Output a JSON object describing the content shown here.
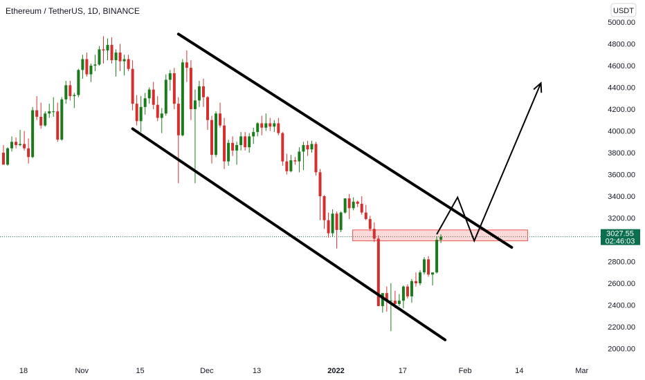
{
  "chart_data": {
    "type": "candlestick",
    "title": "Ethereum / TetherUS, 1D, BINANCE",
    "currency": "USDT",
    "colors": {
      "up": "#26a69a",
      "upFill": "#1b7a1b",
      "down": "#ef5350",
      "downFill": "#d32f2f",
      "current": "#0b6e4f",
      "zone": "#ef5350",
      "annotation": "#000000"
    },
    "y_axis": {
      "min": 2000,
      "max": 5000,
      "ticks": [
        "5000.00",
        "4800.00",
        "4600.00",
        "4400.00",
        "4200.00",
        "4000.00",
        "3800.00",
        "3600.00",
        "3400.00",
        "3200.00",
        "3000.00",
        "2800.00",
        "2600.00",
        "2400.00",
        "2200.00",
        "2000.00"
      ]
    },
    "x_axis": {
      "ticks": [
        {
          "label": "18",
          "day": 0
        },
        {
          "label": "Nov",
          "day": 14
        },
        {
          "label": "15",
          "day": 28
        },
        {
          "label": "Dec",
          "day": 44
        },
        {
          "label": "13",
          "day": 56
        },
        {
          "label": "2022",
          "day": 75,
          "bold": true
        },
        {
          "label": "17",
          "day": 91
        },
        {
          "label": "Feb",
          "day": 106
        },
        {
          "label": "14",
          "day": 119
        },
        {
          "label": "Mar",
          "day": 134
        }
      ]
    },
    "current_price": {
      "value": "3027.55",
      "countdown": "02:46:03"
    },
    "candles": [
      [
        3800,
        3870,
        3700,
        3690
      ],
      [
        3690,
        3850,
        3680,
        3840
      ],
      [
        3840,
        3950,
        3810,
        3900
      ],
      [
        3900,
        3940,
        3840,
        3870
      ],
      [
        3870,
        4010,
        3860,
        3880
      ],
      [
        3880,
        4000,
        3820,
        3840
      ],
      [
        3840,
        3930,
        3700,
        3760
      ],
      [
        3760,
        4220,
        3750,
        4190
      ],
      [
        4190,
        4320,
        4100,
        4130
      ],
      [
        4130,
        4260,
        4020,
        4050
      ],
      [
        4050,
        4180,
        4040,
        4160
      ],
      [
        4160,
        4250,
        4120,
        4180
      ],
      [
        4180,
        4310,
        4130,
        4180
      ],
      [
        4180,
        4260,
        3900,
        3920
      ],
      [
        3920,
        4310,
        3910,
        4290
      ],
      [
        4290,
        4460,
        4250,
        4420
      ],
      [
        4420,
        4460,
        4280,
        4320
      ],
      [
        4320,
        4350,
        4210,
        4330
      ],
      [
        4330,
        4570,
        4310,
        4560
      ],
      [
        4560,
        4700,
        4480,
        4660
      ],
      [
        4660,
        4720,
        4500,
        4520
      ],
      [
        4520,
        4620,
        4450,
        4600
      ],
      [
        4600,
        4700,
        4550,
        4610
      ],
      [
        4610,
        4780,
        4600,
        4750
      ],
      [
        4750,
        4870,
        4620,
        4740
      ],
      [
        4740,
        4850,
        4650,
        4790
      ],
      [
        4790,
        4860,
        4620,
        4650
      ],
      [
        4650,
        4750,
        4500,
        4720
      ],
      [
        4720,
        4800,
        4550,
        4640
      ],
      [
        4640,
        4700,
        4510,
        4660
      ],
      [
        4660,
        4700,
        4550,
        4570
      ],
      [
        4570,
        4650,
        4190,
        4250
      ],
      [
        4250,
        4330,
        4050,
        4090
      ],
      [
        4090,
        4320,
        3990,
        4220
      ],
      [
        4220,
        4350,
        4150,
        4300
      ],
      [
        4300,
        4400,
        4250,
        4380
      ],
      [
        4380,
        4450,
        4200,
        4240
      ],
      [
        4240,
        4320,
        4090,
        4120
      ],
      [
        4120,
        4210,
        3980,
        4160
      ],
      [
        4160,
        4520,
        4140,
        4470
      ],
      [
        4470,
        4560,
        4370,
        4530
      ],
      [
        4530,
        4580,
        4200,
        4250
      ],
      [
        4250,
        4310,
        3520,
        3960
      ],
      [
        3960,
        4660,
        3950,
        4630
      ],
      [
        4630,
        4740,
        4450,
        4580
      ],
      [
        4580,
        4650,
        4100,
        4200
      ],
      [
        4200,
        4380,
        3520,
        4280
      ],
      [
        4280,
        4460,
        4220,
        4410
      ],
      [
        4410,
        4480,
        4220,
        4310
      ],
      [
        4310,
        4320,
        4010,
        4100
      ],
      [
        4100,
        4140,
        3700,
        3780
      ],
      [
        3780,
        4180,
        3760,
        4160
      ],
      [
        4160,
        4260,
        4030,
        4050
      ],
      [
        4050,
        4120,
        3650,
        3720
      ],
      [
        3720,
        3920,
        3680,
        3890
      ],
      [
        3890,
        3950,
        3770,
        3820
      ],
      [
        3820,
        3900,
        3690,
        3870
      ],
      [
        3870,
        3990,
        3820,
        3950
      ],
      [
        3950,
        3990,
        3820,
        3850
      ],
      [
        3850,
        3980,
        3800,
        3950
      ],
      [
        3950,
        4030,
        3880,
        3990
      ],
      [
        3990,
        4080,
        3950,
        4070
      ],
      [
        4070,
        4140,
        3960,
        4030
      ],
      [
        4030,
        4160,
        4000,
        4070
      ],
      [
        4070,
        4120,
        4000,
        4040
      ],
      [
        4040,
        4100,
        3990,
        4070
      ],
      [
        4070,
        4120,
        3960,
        3980
      ],
      [
        3980,
        3990,
        3680,
        3720
      ],
      [
        3720,
        3790,
        3600,
        3630
      ],
      [
        3630,
        3780,
        3620,
        3730
      ],
      [
        3730,
        3760,
        3690,
        3720
      ],
      [
        3720,
        3850,
        3620,
        3810
      ],
      [
        3810,
        3900,
        3640,
        3870
      ],
      [
        3870,
        3910,
        3770,
        3830
      ],
      [
        3830,
        3910,
        3800,
        3880
      ],
      [
        3880,
        3900,
        3590,
        3620
      ],
      [
        3620,
        3650,
        3180,
        3400
      ],
      [
        3400,
        3410,
        3100,
        3180
      ],
      [
        3180,
        3250,
        3020,
        3060
      ],
      [
        3060,
        3280,
        3030,
        3240
      ],
      [
        3240,
        3260,
        2920,
        3090
      ],
      [
        3090,
        3260,
        3070,
        3250
      ],
      [
        3250,
        3380,
        3240,
        3380
      ],
      [
        3380,
        3420,
        3190,
        3290
      ],
      [
        3290,
        3390,
        3270,
        3350
      ],
      [
        3350,
        3360,
        3300,
        3330
      ],
      [
        3330,
        3400,
        3230,
        3250
      ],
      [
        3250,
        3320,
        3180,
        3190
      ],
      [
        3190,
        3220,
        3080,
        3100
      ],
      [
        3100,
        3160,
        2980,
        3010
      ],
      [
        3010,
        3040,
        2400,
        2390
      ],
      [
        2390,
        2500,
        2330,
        2510
      ],
      [
        2510,
        2570,
        2340,
        2440
      ],
      [
        2440,
        2600,
        2160,
        2440
      ],
      [
        2440,
        2530,
        2370,
        2410
      ],
      [
        2410,
        2500,
        2390,
        2440
      ],
      [
        2440,
        2580,
        2370,
        2570
      ],
      [
        2570,
        2590,
        2460,
        2480
      ],
      [
        2480,
        2640,
        2420,
        2620
      ],
      [
        2620,
        2700,
        2570,
        2600
      ],
      [
        2600,
        2720,
        2580,
        2700
      ],
      [
        2700,
        2840,
        2680,
        2820
      ],
      [
        2820,
        2850,
        2660,
        2680
      ],
      [
        2680,
        2690,
        2580,
        2700
      ],
      [
        2700,
        3030,
        2690,
        3000
      ],
      [
        3000,
        3050,
        2970,
        3027.55
      ]
    ],
    "support_zone": {
      "from": 2990,
      "to": 3090,
      "start_day": 79,
      "end_day": 121
    },
    "channel_upper": {
      "start": [
        42,
        4890
      ],
      "end": [
        122,
        2930
      ]
    },
    "channel_lower": {
      "start": [
        31,
        4020
      ],
      "end": [
        106,
        2080
      ]
    },
    "projection_path": [
      [
        104,
        3050
      ],
      [
        109,
        3390
      ],
      [
        113,
        2990
      ],
      [
        129,
        4440
      ]
    ]
  }
}
